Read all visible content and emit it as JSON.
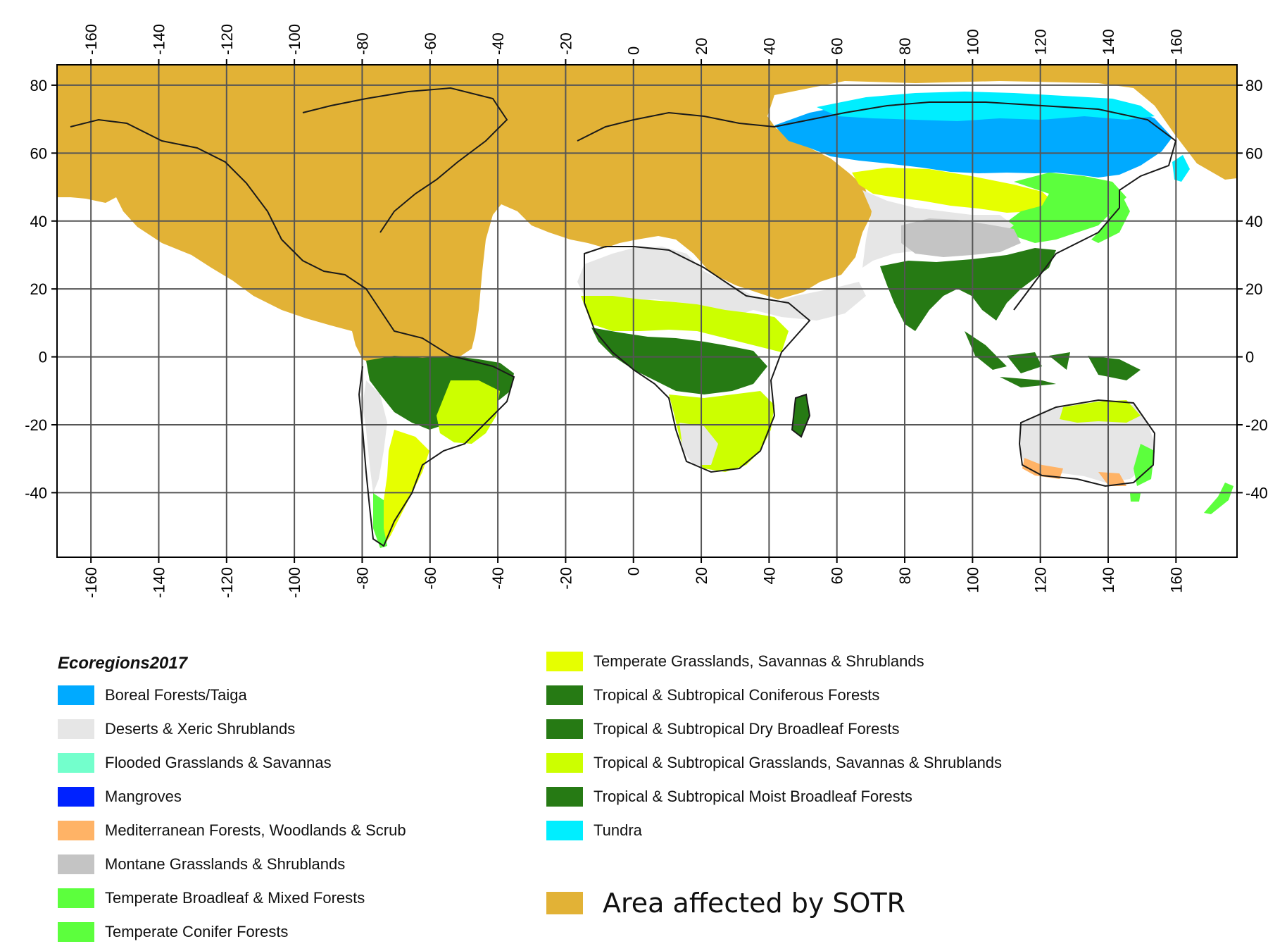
{
  "map": {
    "x_ticks": [
      "-160",
      "-140",
      "-120",
      "-100",
      "-80",
      "-60",
      "-40",
      "-20",
      "0",
      "20",
      "40",
      "60",
      "80",
      "100",
      "120",
      "140",
      "160"
    ],
    "y_ticks": [
      "80",
      "60",
      "40",
      "20",
      "0",
      "-20",
      "-40"
    ],
    "lon_range": [
      -170,
      178
    ],
    "lat_range": [
      -59,
      86
    ],
    "grid": true,
    "tick_label_orientation": "vertical",
    "projection": "equirectangular"
  },
  "legend": {
    "title": "Ecoregions2017",
    "items": [
      {
        "label": "Boreal Forests/Taiga",
        "color": "#00aaff"
      },
      {
        "label": "Deserts & Xeric Shrublands",
        "color": "#e6e6e6"
      },
      {
        "label": "Flooded Grasslands & Savannas",
        "color": "#73ffcc"
      },
      {
        "label": "Mangroves",
        "color": "#0022ff"
      },
      {
        "label": "Mediterranean Forests, Woodlands & Scrub",
        "color": "#ffb366"
      },
      {
        "label": "Montane Grasslands & Shrublands",
        "color": "#c4c4c4"
      },
      {
        "label": "Temperate Broadleaf & Mixed Forests",
        "color": "#5cff3d"
      },
      {
        "label": "Temperate Conifer Forests",
        "color": "#5cff3d"
      },
      {
        "label": "Temperate Grasslands, Savannas & Shrublands",
        "color": "#e6ff00"
      },
      {
        "label": "Tropical & Subtropical Coniferous Forests",
        "color": "#267a14"
      },
      {
        "label": "Tropical & Subtropical Dry Broadleaf Forests",
        "color": "#267a14"
      },
      {
        "label": "Tropical & Subtropical Grasslands, Savannas & Shrublands",
        "color": "#ccff00"
      },
      {
        "label": "Tropical & Subtropical Moist Broadleaf Forests",
        "color": "#267a14"
      },
      {
        "label": "Tundra",
        "color": "#00eeff"
      }
    ],
    "sotr": {
      "label": "Area affected by SOTR",
      "color": "#e2b236"
    }
  }
}
